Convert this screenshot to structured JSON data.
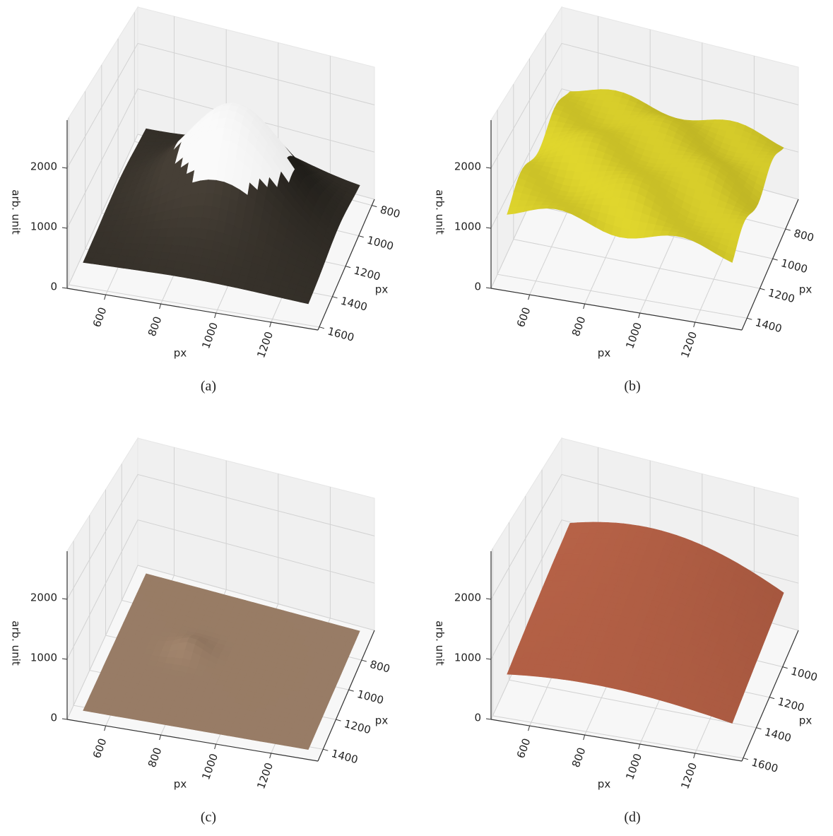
{
  "chart_data": [
    {
      "type": "surface",
      "caption": "(a)",
      "xlabel": "px",
      "ylabel": "px",
      "zlabel": "arb. unit",
      "xlim": [
        460,
        1370
      ],
      "xticks": [
        600,
        800,
        1000,
        1200
      ],
      "ylim": [
        760,
        1620
      ],
      "yticks": [
        800,
        1000,
        1200,
        1400,
        1600
      ],
      "zlim": [
        0,
        2800
      ],
      "zticks": [
        0,
        1000,
        2000
      ],
      "surface": "dome"
    },
    {
      "type": "surface",
      "caption": "(b)",
      "xlabel": "px",
      "ylabel": "px",
      "zlabel": "arb. unit",
      "xlim": [
        460,
        1370
      ],
      "xticks": [
        600,
        800,
        1000,
        1200
      ],
      "ylim": [
        600,
        1480
      ],
      "yticks": [
        800,
        1000,
        1200,
        1400
      ],
      "zlim": [
        0,
        2800
      ],
      "zticks": [
        0,
        1000,
        2000
      ],
      "surface": "bumps"
    },
    {
      "type": "surface",
      "caption": "(c)",
      "xlabel": "px",
      "ylabel": "px",
      "zlabel": "arb. unit",
      "xlim": [
        460,
        1370
      ],
      "xticks": [
        600,
        800,
        1000,
        1200
      ],
      "ylim": [
        600,
        1480
      ],
      "yticks": [
        800,
        1000,
        1200,
        1400
      ],
      "zlim": [
        0,
        2800
      ],
      "zticks": [
        0,
        1000,
        2000
      ],
      "surface": "flat"
    },
    {
      "type": "surface",
      "caption": "(d)",
      "xlabel": "px",
      "ylabel": "px",
      "zlabel": "arb. unit",
      "xlim": [
        460,
        1370
      ],
      "xticks": [
        600,
        800,
        1000,
        1200
      ],
      "ylim": [
        760,
        1620
      ],
      "yticks": [
        1000,
        1200,
        1400,
        1600
      ],
      "zlim": [
        0,
        2800
      ],
      "zticks": [
        0,
        1000,
        2000
      ],
      "surface": "curved"
    }
  ]
}
